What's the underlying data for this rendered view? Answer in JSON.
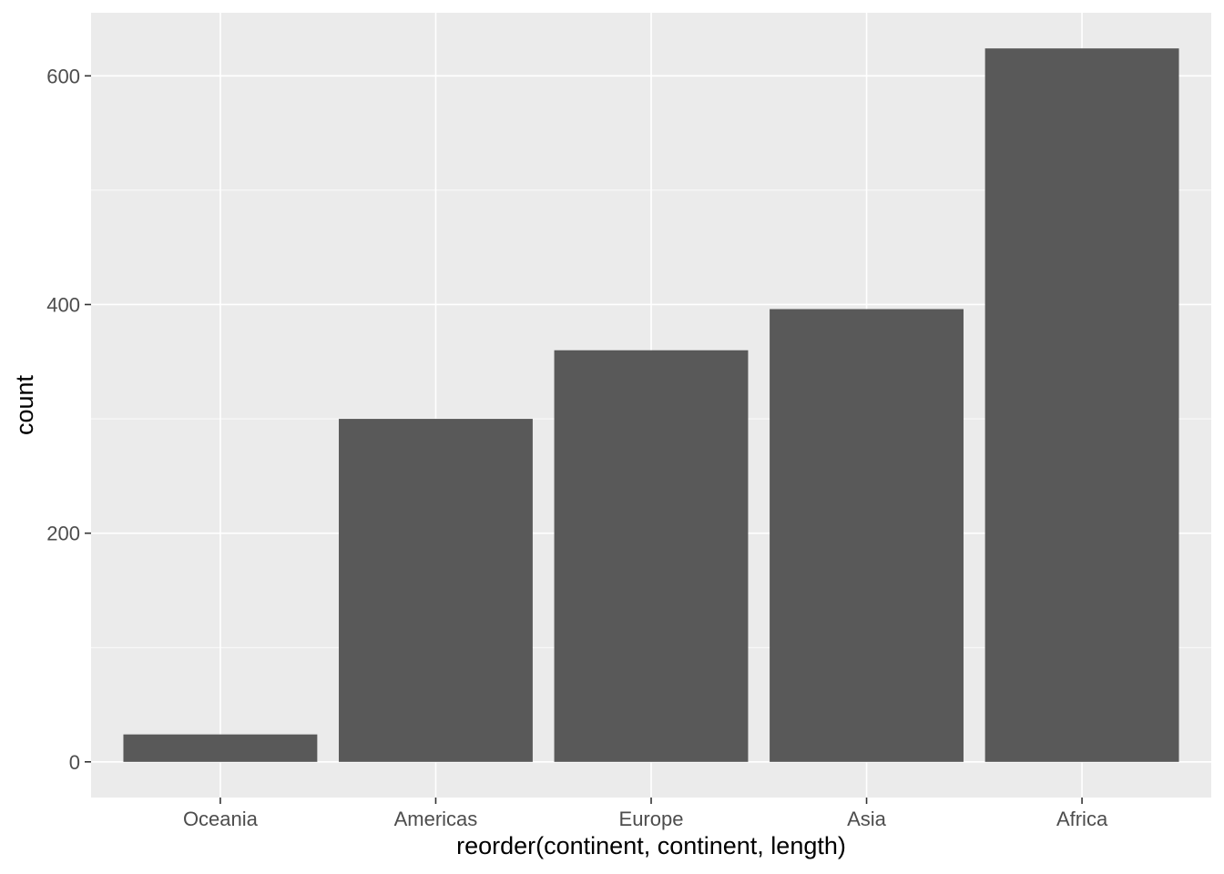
{
  "chart_data": {
    "type": "bar",
    "title": "",
    "xlabel": "reorder(continent, continent, length)",
    "ylabel": "count",
    "categories": [
      "Oceania",
      "Americas",
      "Europe",
      "Asia",
      "Africa"
    ],
    "values": [
      24,
      300,
      360,
      396,
      624
    ],
    "ylim": [
      -31.2,
      655.2
    ],
    "yticks": [
      0,
      200,
      400,
      600
    ],
    "yminor": [
      100,
      300,
      500
    ],
    "grid": true,
    "legend": "none",
    "colors": {
      "bar": "#595959",
      "panel": "#ebebeb",
      "grid": "#ffffff"
    }
  }
}
